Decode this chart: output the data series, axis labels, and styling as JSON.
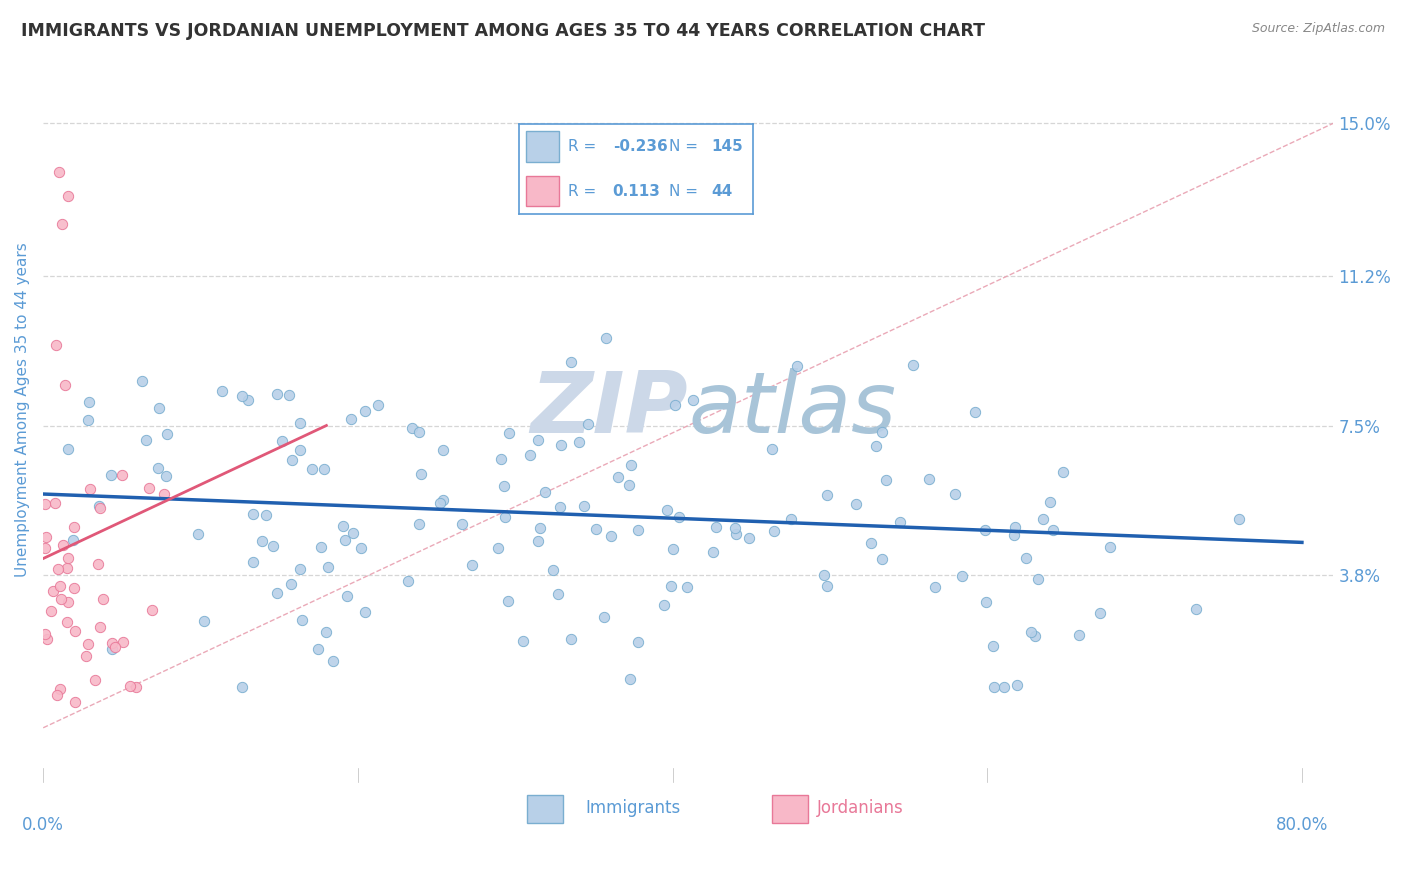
{
  "title": "IMMIGRANTS VS JORDANIAN UNEMPLOYMENT AMONG AGES 35 TO 44 YEARS CORRELATION CHART",
  "source_text": "Source: ZipAtlas.com",
  "ylabel": "Unemployment Among Ages 35 to 44 years",
  "xlim": [
    0.0,
    0.82
  ],
  "ylim": [
    -0.01,
    0.168
  ],
  "yticks": [
    0.038,
    0.075,
    0.112,
    0.15
  ],
  "ytick_labels": [
    "3.8%",
    "7.5%",
    "11.2%",
    "15.0%"
  ],
  "background_color": "#ffffff",
  "watermark_color": "#ccd8e8",
  "grid_color": "#cccccc",
  "title_color": "#333333",
  "axis_label_color": "#5b9bd5",
  "tick_label_color": "#5b9bd5",
  "immigrants_color": "#b8d0e8",
  "immigrants_edge_color": "#7aaed0",
  "jordanians_color": "#f8b8c8",
  "jordanians_edge_color": "#e87898",
  "immigrants_R": -0.236,
  "immigrants_N": 145,
  "jordanians_R": 0.113,
  "jordanians_N": 44,
  "trend_line_imm_color": "#2060b0",
  "trend_line_jor_color": "#e05878",
  "diag_line_color": "#e8a0b0",
  "legend_box_color": "#5b9bd5",
  "legend_text_color": "#5b9bd5",
  "legend_r_imm": "-0.236",
  "legend_n_imm": "145",
  "legend_r_jor": "0.113",
  "legend_n_jor": "44"
}
